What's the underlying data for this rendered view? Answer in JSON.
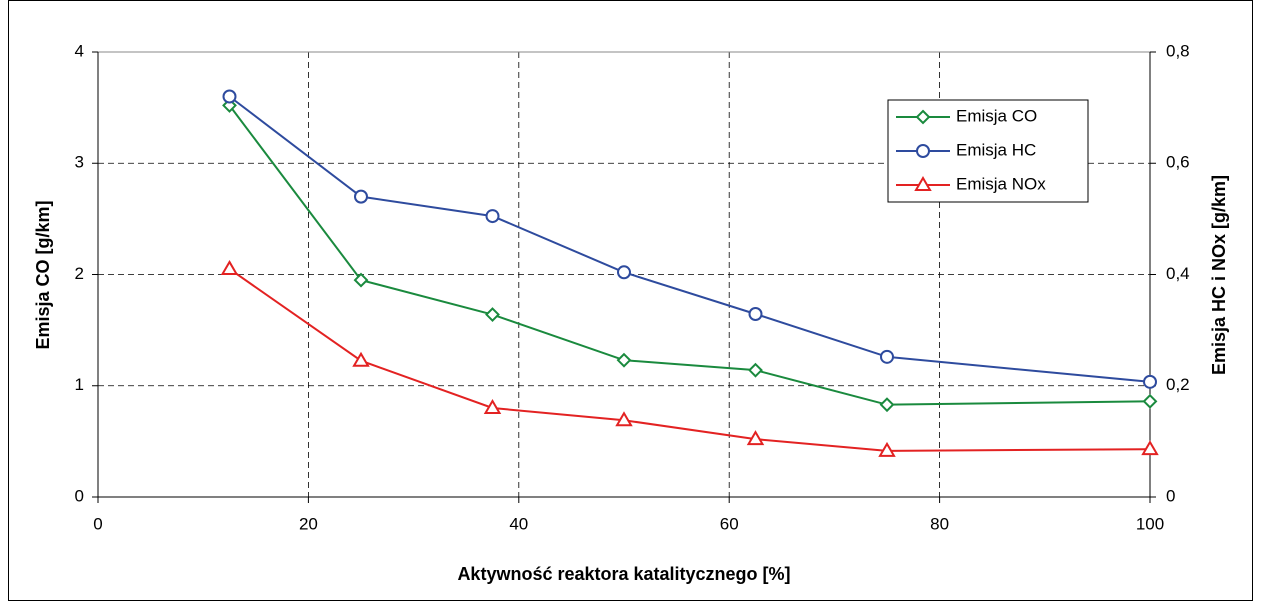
{
  "chart_data": {
    "type": "line",
    "xlabel": "Aktywność reaktora katalitycznego [%]",
    "ylabel": "Emisja CO [g/km]",
    "y2label": "Emisja HC i NOx [g/km]",
    "x": [
      12.5,
      25,
      37.5,
      50,
      62.5,
      75,
      100
    ],
    "series": [
      {
        "name": "Emisja CO",
        "color": "#1a8a3e",
        "values": [
          3.52,
          1.95,
          1.64,
          1.23,
          1.14,
          0.83,
          0.86
        ]
      },
      {
        "name": "Emisja HC",
        "color": "#2e4b9e",
        "axis": "y2",
        "values": [
          0.72,
          0.54,
          0.505,
          0.404,
          0.329,
          0.252,
          0.207
        ]
      },
      {
        "name": "Emisja NOx",
        "color": "#e32222",
        "axis": "y2",
        "values": [
          0.41,
          0.245,
          0.16,
          0.138,
          0.104,
          0.083,
          0.086
        ]
      }
    ],
    "xlim": [
      0,
      100
    ],
    "xticks": [
      0,
      20,
      40,
      60,
      80,
      100
    ],
    "ylim": [
      0,
      4
    ],
    "yticks": [
      0,
      1,
      2,
      3,
      4
    ],
    "y2lim": [
      0,
      0.8
    ],
    "y2ticks": [
      0,
      {
        "value": 0.2,
        "label": "0,2"
      },
      {
        "value": 0.4,
        "label": "0,4"
      },
      {
        "value": 0.6,
        "label": "0,6"
      },
      {
        "value": 0.8,
        "label": "0,8"
      }
    ],
    "grid": true,
    "legend": "upper right"
  }
}
